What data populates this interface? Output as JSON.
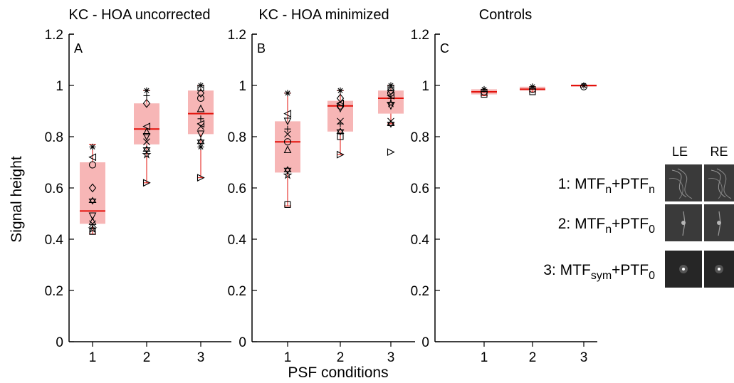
{
  "ylabel": "Signal height",
  "xlabel": "PSF conditions",
  "yticks": [
    "0",
    "0.2",
    "0.4",
    "0.6",
    "0.8",
    "1",
    "1.2"
  ],
  "xticks": [
    "1",
    "2",
    "3"
  ],
  "legend": {
    "eye_labels": [
      "LE",
      "RE"
    ],
    "items": [
      {
        "pre": "1: MTF",
        "s1": "n",
        "mid": "+PTF",
        "s2": "n"
      },
      {
        "pre": "2: MTF",
        "s1": "n",
        "mid": "+PTF",
        "s2": "0"
      },
      {
        "pre": "3: MTF",
        "s1": "sym",
        "mid": "+PTF",
        "s2": "0"
      }
    ]
  },
  "chart_data": [
    {
      "type": "box",
      "title": "KC - HOA uncorrected",
      "panel_label": "A",
      "categories": [
        "1",
        "2",
        "3"
      ],
      "ylim": [
        0,
        1.2
      ],
      "box_color": "#f7b6b6",
      "median_color": "#e3120b",
      "boxes": [
        {
          "min": 0.42,
          "q1": 0.46,
          "median": 0.51,
          "q3": 0.7,
          "max": 0.77
        },
        {
          "min": 0.62,
          "q1": 0.77,
          "median": 0.83,
          "q3": 0.93,
          "max": 0.98
        },
        {
          "min": 0.64,
          "q1": 0.81,
          "median": 0.89,
          "q3": 0.98,
          "max": 1.0
        }
      ],
      "points": [
        {
          "x": 1,
          "y": 0.76,
          "m": "asterisk"
        },
        {
          "x": 1,
          "y": 0.72,
          "m": "tri-left"
        },
        {
          "x": 1,
          "y": 0.69,
          "m": "circle"
        },
        {
          "x": 1,
          "y": 0.6,
          "m": "diamond"
        },
        {
          "x": 1,
          "y": 0.55,
          "m": "hexagram"
        },
        {
          "x": 1,
          "y": 0.49,
          "m": "tri-down"
        },
        {
          "x": 1,
          "y": 0.47,
          "m": "tri-up"
        },
        {
          "x": 1,
          "y": 0.46,
          "m": "x"
        },
        {
          "x": 1,
          "y": 0.44,
          "m": "pentagram"
        },
        {
          "x": 1,
          "y": 0.43,
          "m": "square"
        },
        {
          "x": 2,
          "y": 0.98,
          "m": "asterisk"
        },
        {
          "x": 2,
          "y": 0.96,
          "m": "plus"
        },
        {
          "x": 2,
          "y": 0.93,
          "m": "diamond"
        },
        {
          "x": 2,
          "y": 0.84,
          "m": "tri-left"
        },
        {
          "x": 2,
          "y": 0.82,
          "m": "tri-up"
        },
        {
          "x": 2,
          "y": 0.8,
          "m": "tri-down"
        },
        {
          "x": 2,
          "y": 0.78,
          "m": "x"
        },
        {
          "x": 2,
          "y": 0.75,
          "m": "hexagram"
        },
        {
          "x": 2,
          "y": 0.73,
          "m": "pentagram"
        },
        {
          "x": 2,
          "y": 0.62,
          "m": "tri-right"
        },
        {
          "x": 3,
          "y": 1.0,
          "m": "asterisk"
        },
        {
          "x": 3,
          "y": 0.99,
          "m": "square"
        },
        {
          "x": 3,
          "y": 0.97,
          "m": "diamond"
        },
        {
          "x": 3,
          "y": 0.95,
          "m": "circle"
        },
        {
          "x": 3,
          "y": 0.91,
          "m": "tri-up"
        },
        {
          "x": 3,
          "y": 0.87,
          "m": "plus"
        },
        {
          "x": 3,
          "y": 0.85,
          "m": "tri-left"
        },
        {
          "x": 3,
          "y": 0.84,
          "m": "x"
        },
        {
          "x": 3,
          "y": 0.81,
          "m": "tri-down"
        },
        {
          "x": 3,
          "y": 0.78,
          "m": "hexagram"
        },
        {
          "x": 3,
          "y": 0.76,
          "m": "asterisk"
        },
        {
          "x": 3,
          "y": 0.64,
          "m": "tri-right"
        }
      ]
    },
    {
      "type": "box",
      "title": "KC - HOA minimized",
      "panel_label": "B",
      "categories": [
        "1",
        "2",
        "3"
      ],
      "ylim": [
        0,
        1.2
      ],
      "box_color": "#f7b6b6",
      "median_color": "#e3120b",
      "boxes": [
        {
          "min": 0.53,
          "q1": 0.66,
          "median": 0.78,
          "q3": 0.86,
          "max": 0.97
        },
        {
          "min": 0.73,
          "q1": 0.82,
          "median": 0.92,
          "q3": 0.94,
          "max": 0.98
        },
        {
          "min": 0.85,
          "q1": 0.89,
          "median": 0.95,
          "q3": 0.98,
          "max": 1.0
        }
      ],
      "points": [
        {
          "x": 1,
          "y": 0.97,
          "m": "asterisk"
        },
        {
          "x": 1,
          "y": 0.89,
          "m": "tri-left"
        },
        {
          "x": 1,
          "y": 0.86,
          "m": "tri-down"
        },
        {
          "x": 1,
          "y": 0.83,
          "m": "plus"
        },
        {
          "x": 1,
          "y": 0.81,
          "m": "x"
        },
        {
          "x": 1,
          "y": 0.78,
          "m": "circle"
        },
        {
          "x": 1,
          "y": 0.75,
          "m": "tri-up"
        },
        {
          "x": 1,
          "y": 0.67,
          "m": "hexagram"
        },
        {
          "x": 1,
          "y": 0.65,
          "m": "pentagram"
        },
        {
          "x": 1,
          "y": 0.535,
          "m": "square"
        },
        {
          "x": 2,
          "y": 0.98,
          "m": "asterisk"
        },
        {
          "x": 2,
          "y": 0.95,
          "m": "diamond"
        },
        {
          "x": 2,
          "y": 0.93,
          "m": "tri-left"
        },
        {
          "x": 2,
          "y": 0.92,
          "m": "circle"
        },
        {
          "x": 2,
          "y": 0.91,
          "m": "tri-down"
        },
        {
          "x": 2,
          "y": 0.86,
          "m": "x"
        },
        {
          "x": 2,
          "y": 0.85,
          "m": "plus"
        },
        {
          "x": 2,
          "y": 0.82,
          "m": "hexagram"
        },
        {
          "x": 2,
          "y": 0.8,
          "m": "square"
        },
        {
          "x": 2,
          "y": 0.73,
          "m": "tri-right"
        },
        {
          "x": 3,
          "y": 1.0,
          "m": "asterisk"
        },
        {
          "x": 3,
          "y": 0.99,
          "m": "square"
        },
        {
          "x": 3,
          "y": 0.98,
          "m": "diamond"
        },
        {
          "x": 3,
          "y": 0.97,
          "m": "circle"
        },
        {
          "x": 3,
          "y": 0.96,
          "m": "tri-left"
        },
        {
          "x": 3,
          "y": 0.95,
          "m": "plus"
        },
        {
          "x": 3,
          "y": 0.93,
          "m": "pentagram"
        },
        {
          "x": 3,
          "y": 0.92,
          "m": "tri-down"
        },
        {
          "x": 3,
          "y": 0.86,
          "m": "x"
        },
        {
          "x": 3,
          "y": 0.85,
          "m": "hexagram"
        },
        {
          "x": 3,
          "y": 0.74,
          "m": "tri-right"
        }
      ]
    },
    {
      "type": "box",
      "title": "Controls",
      "panel_label": "C",
      "categories": [
        "1",
        "2",
        "3"
      ],
      "ylim": [
        0,
        1.2
      ],
      "box_color": "#f7b6b6",
      "median_color": "#e3120b",
      "boxes": [
        {
          "min": 0.96,
          "q1": 0.965,
          "median": 0.975,
          "q3": 0.985,
          "max": 0.985
        },
        {
          "min": 0.975,
          "q1": 0.98,
          "median": 0.985,
          "q3": 0.995,
          "max": 0.995
        },
        {
          "min": 0.995,
          "q1": 0.997,
          "median": 1.0,
          "q3": 1.0,
          "max": 1.0
        }
      ],
      "points": [
        {
          "x": 1,
          "y": 0.985,
          "m": "asterisk"
        },
        {
          "x": 1,
          "y": 0.975,
          "m": "circle"
        },
        {
          "x": 1,
          "y": 0.965,
          "m": "square"
        },
        {
          "x": 2,
          "y": 0.995,
          "m": "asterisk"
        },
        {
          "x": 2,
          "y": 0.985,
          "m": "circle"
        },
        {
          "x": 2,
          "y": 0.975,
          "m": "square"
        },
        {
          "x": 3,
          "y": 1.0,
          "m": "asterisk"
        },
        {
          "x": 3,
          "y": 0.995,
          "m": "circle"
        }
      ]
    }
  ]
}
